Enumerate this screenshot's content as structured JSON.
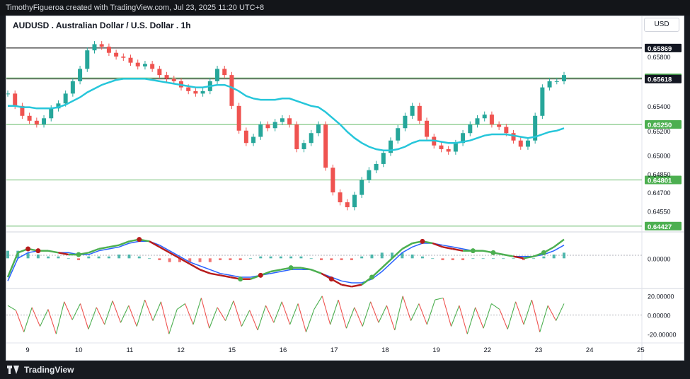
{
  "header": {
    "credit": "TimothyFigueroa created with TradingView.com, Jul 23, 2025 11:20 UTC+8"
  },
  "footer": {
    "brand": "TradingView"
  },
  "chart_data": {
    "type": "line",
    "title": "AUDUSD . Australian Dollar / U.S. Dollar . 1h",
    "currency": "USD",
    "x_ticks": [
      "9",
      "10",
      "11",
      "12",
      "15",
      "16",
      "17",
      "18",
      "19",
      "22",
      "23",
      "24",
      "25"
    ],
    "price_ticks": [
      "0.65800",
      "0.65400",
      "0.65200",
      "0.65000",
      "0.64850",
      "0.64700",
      "0.64550"
    ],
    "price_range": [
      0.6438,
      0.66
    ],
    "horizontal_levels": [
      {
        "value": 0.65869,
        "label": "0.65869",
        "color": "#000000"
      },
      {
        "value": 0.65627,
        "label": "0.65627",
        "color": "#4caf50"
      },
      {
        "value": 0.65618,
        "label": "0.65618",
        "color": "#000000"
      },
      {
        "value": 0.6525,
        "label": "0.65250",
        "color": "#4caf50"
      },
      {
        "value": 0.64801,
        "label": "0.64801",
        "color": "#4caf50"
      },
      {
        "value": 0.64427,
        "label": "0.64427",
        "color": "#4caf50"
      }
    ],
    "price_close": [
      0.655,
      0.654,
      0.6532,
      0.6528,
      0.6525,
      0.653,
      0.6538,
      0.6542,
      0.655,
      0.656,
      0.657,
      0.6585,
      0.659,
      0.6588,
      0.6583,
      0.658,
      0.6579,
      0.6575,
      0.6572,
      0.6574,
      0.657,
      0.6565,
      0.6562,
      0.656,
      0.6555,
      0.6552,
      0.655,
      0.6552,
      0.656,
      0.657,
      0.6565,
      0.654,
      0.652,
      0.651,
      0.6515,
      0.6525,
      0.6522,
      0.6527,
      0.653,
      0.6525,
      0.6505,
      0.651,
      0.6518,
      0.6525,
      0.649,
      0.647,
      0.6462,
      0.6458,
      0.6468,
      0.648,
      0.6488,
      0.6493,
      0.6502,
      0.6512,
      0.6522,
      0.6532,
      0.654,
      0.6528,
      0.6515,
      0.6508,
      0.6505,
      0.6503,
      0.651,
      0.6518,
      0.6525,
      0.653,
      0.6533,
      0.6525,
      0.6523,
      0.6518,
      0.6512,
      0.6507,
      0.6512,
      0.6532,
      0.6555,
      0.656,
      0.656,
      0.6565
    ],
    "ema_values": [
      0.654,
      0.654,
      0.6539,
      0.6539,
      0.6538,
      0.6538,
      0.6538,
      0.6539,
      0.6541,
      0.6544,
      0.6547,
      0.6551,
      0.6554,
      0.6557,
      0.6559,
      0.6561,
      0.6562,
      0.6562,
      0.6562,
      0.6562,
      0.6561,
      0.656,
      0.6559,
      0.6558,
      0.6557,
      0.6556,
      0.6555,
      0.6555,
      0.6556,
      0.6557,
      0.6557,
      0.6555,
      0.6552,
      0.6548,
      0.6546,
      0.6545,
      0.6545,
      0.6545,
      0.6546,
      0.6546,
      0.6544,
      0.6542,
      0.654,
      0.6539,
      0.6535,
      0.653,
      0.6525,
      0.6519,
      0.6514,
      0.651,
      0.6507,
      0.6505,
      0.6504,
      0.6504,
      0.6505,
      0.6507,
      0.651,
      0.6512,
      0.6512,
      0.6512,
      0.6511,
      0.651,
      0.651,
      0.6511,
      0.6512,
      0.6514,
      0.6516,
      0.6517,
      0.6517,
      0.6517,
      0.6516,
      0.6515,
      0.6514,
      0.6515,
      0.6517,
      0.6519,
      0.652,
      0.6522
    ],
    "macd": {
      "ticks": [
        "0.00000"
      ],
      "range": [
        -0.0016,
        0.0014
      ],
      "macd_line": [
        -0.001,
        0.0003,
        0.0005,
        0.0004,
        0.0004,
        0.0003,
        0.0002,
        0.0002,
        0.0003,
        0.0005,
        0.0006,
        0.0007,
        0.0009,
        0.001,
        0.0009,
        0.0006,
        0.0003,
        0.0,
        -0.0003,
        -0.0006,
        -0.0008,
        -0.0009,
        -0.001,
        -0.0011,
        -0.0011,
        -0.0009,
        -0.0007,
        -0.0006,
        -0.0005,
        -0.0005,
        -0.0006,
        -0.0008,
        -0.0011,
        -0.0014,
        -0.0015,
        -0.0014,
        -0.001,
        -0.0005,
        0.0,
        0.0005,
        0.0008,
        0.0009,
        0.0008,
        0.0006,
        0.0005,
        0.0004,
        0.0004,
        0.0004,
        0.0003,
        0.0002,
        0.0001,
        0.0,
        0.0001,
        0.0003,
        0.0006,
        0.001
      ],
      "signal_line": [
        -0.0012,
        0.0,
        0.0003,
        0.0004,
        0.0004,
        0.0003,
        0.0003,
        0.0002,
        0.0002,
        0.0004,
        0.0005,
        0.0006,
        0.0008,
        0.0009,
        0.0009,
        0.0007,
        0.0004,
        0.0001,
        -0.0002,
        -0.0004,
        -0.0006,
        -0.0008,
        -0.0009,
        -0.001,
        -0.001,
        -0.0009,
        -0.0008,
        -0.0007,
        -0.0006,
        -0.0006,
        -0.0006,
        -0.0008,
        -0.001,
        -0.0012,
        -0.0013,
        -0.0013,
        -0.0011,
        -0.0007,
        -0.0002,
        0.0003,
        0.0006,
        0.0008,
        0.0008,
        0.0007,
        0.0006,
        0.0005,
        0.0004,
        0.0004,
        0.0003,
        0.0002,
        0.0001,
        0.0001,
        0.0001,
        0.0002,
        0.0004,
        0.0007
      ],
      "histogram": [
        0.0004,
        0.0004,
        0.0003,
        0.0002,
        0.0001,
        0.0001,
        0.0,
        -0.0001,
        0.0001,
        0.0001,
        0.0001,
        0.0002,
        0.0002,
        0.0001,
        0.0,
        -0.0001,
        -0.0002,
        -0.0002,
        -0.0002,
        -0.0002,
        -0.0002,
        -0.0001,
        -0.0001,
        -0.0001,
        0.0,
        0.0001,
        0.0001,
        0.0001,
        0.0001,
        0.0001,
        0.0,
        -0.0001,
        -0.0001,
        -0.0001,
        -0.0001,
        0.0001,
        0.0002,
        0.0003,
        0.0003,
        0.0003,
        0.0002,
        0.0001,
        0.0,
        -0.0001,
        -0.0001,
        -0.0001,
        0.0,
        0.0,
        0.0,
        0.0,
        0.0,
        -0.0001,
        0.0,
        0.0001,
        0.0002,
        0.0003
      ],
      "cross_markers": [
        {
          "index": 2,
          "color": "#b71c1c"
        },
        {
          "index": 3,
          "color": "#b71c1c"
        },
        {
          "index": 7,
          "color": "#4caf50"
        },
        {
          "index": 13,
          "color": "#b71c1c"
        },
        {
          "index": 23,
          "color": "#4caf50"
        },
        {
          "index": 25,
          "color": "#b71c1c"
        },
        {
          "index": 28,
          "color": "#4caf50"
        },
        {
          "index": 32,
          "color": "#b71c1c"
        },
        {
          "index": 36,
          "color": "#4caf50"
        },
        {
          "index": 41,
          "color": "#b71c1c"
        },
        {
          "index": 46,
          "color": "#4caf50"
        },
        {
          "index": 48,
          "color": "#4caf50"
        },
        {
          "index": 53,
          "color": "#4caf50"
        }
      ]
    },
    "oscillator": {
      "ticks": [
        "20.00000",
        "0.00000",
        "-20.00000"
      ],
      "range": [
        -28,
        28
      ],
      "values": [
        10,
        5,
        -18,
        8,
        -12,
        6,
        -20,
        14,
        -5,
        12,
        -15,
        8,
        -10,
        15,
        -8,
        10,
        -12,
        16,
        -6,
        14,
        -20,
        6,
        12,
        -10,
        18,
        -14,
        8,
        -6,
        15,
        -12,
        5,
        -16,
        10,
        -8,
        14,
        -10,
        12,
        -18,
        6,
        20,
        -10,
        16,
        -14,
        8,
        -12,
        14,
        -8,
        10,
        -16,
        20,
        -6,
        12,
        -10,
        16,
        18,
        -12,
        10,
        -20,
        8,
        -14,
        12,
        6,
        -15,
        14,
        -10,
        16,
        -18,
        10,
        -6,
        12
      ]
    }
  }
}
